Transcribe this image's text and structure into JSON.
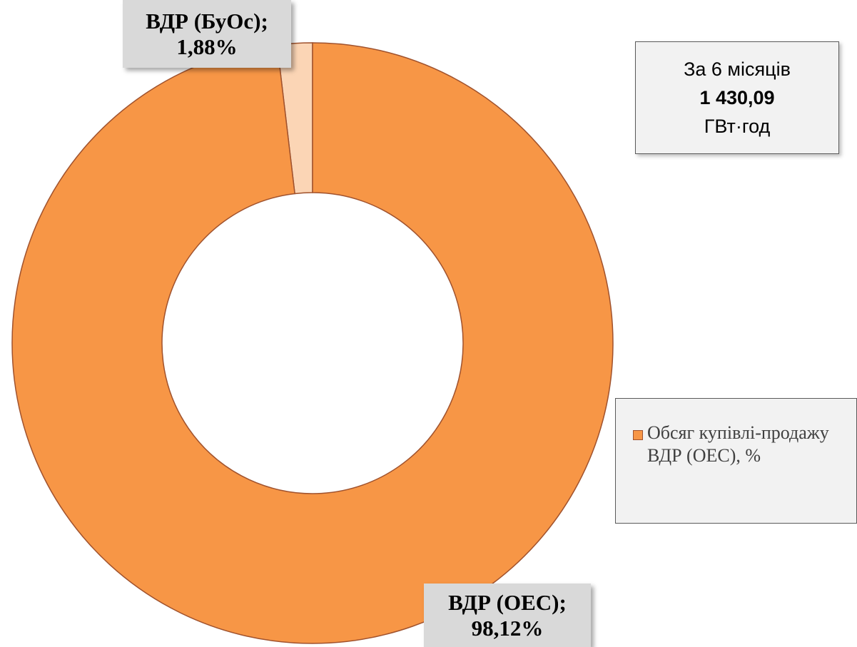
{
  "chart_data": {
    "type": "pie",
    "variant": "donut",
    "title": "",
    "categories": [
      "ВДР (БуОс)",
      "ВДР (ОЕС)"
    ],
    "values": [
      1.88,
      98.12
    ],
    "unit": "%",
    "colors": [
      "#fbd5b5",
      "#f79646"
    ],
    "stroke_color": "#a0522d",
    "data_labels": [
      {
        "series": "ВДР (БуОс);",
        "value": "1,88%"
      },
      {
        "series": "ВДР (ОЕС);",
        "value": "98,12%"
      }
    ],
    "legend": {
      "placement": "right",
      "entries": [
        {
          "label": "Обсяг купівлі-продажу ВДР (ОЕС), %",
          "color": "#f79646"
        }
      ]
    },
    "annotation": {
      "line1": "За 6 місяців",
      "value": "1 430,09",
      "unit": "ГВт·год"
    }
  }
}
